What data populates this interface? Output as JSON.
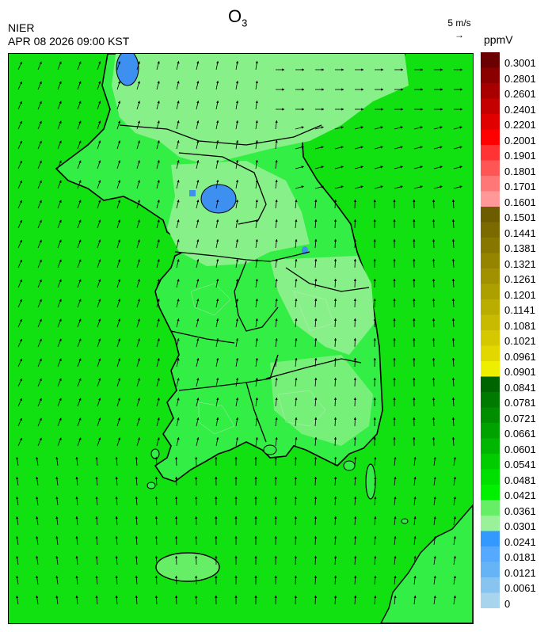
{
  "title": {
    "main": "O",
    "sub": "3"
  },
  "source": "NIER",
  "datetime": "APR 08 2026 09:00 KST",
  "wind_key": {
    "label": "5 m/s",
    "arrow": "→"
  },
  "unit": "ppmV",
  "colorbar": {
    "labels": [
      "0.3001",
      "0.2801",
      "0.2601",
      "0.2401",
      "0.2201",
      "0.2001",
      "0.1901",
      "0.1801",
      "0.1701",
      "0.1601",
      "0.1501",
      "0.1441",
      "0.1381",
      "0.1321",
      "0.1261",
      "0.1201",
      "0.1141",
      "0.1081",
      "0.1021",
      "0.0961",
      "0.0901",
      "0.0841",
      "0.0781",
      "0.0721",
      "0.0661",
      "0.0601",
      "0.0541",
      "0.0481",
      "0.0421",
      "0.0361",
      "0.0301",
      "0.0241",
      "0.0181",
      "0.0121",
      "0.0061",
      "0"
    ],
    "colors": [
      "#6b0000",
      "#8a0000",
      "#a80000",
      "#c40000",
      "#e00000",
      "#ff0000",
      "#ff3333",
      "#ff5555",
      "#ff7777",
      "#ff9999",
      "#6e5c00",
      "#7a6a00",
      "#877700",
      "#948400",
      "#a19100",
      "#ae9f00",
      "#bbac00",
      "#c8ba00",
      "#d5c800",
      "#e3d700",
      "#eeee00",
      "#006400",
      "#007a00",
      "#008e00",
      "#00a200",
      "#00b600",
      "#00cc00",
      "#00e000",
      "#00f000",
      "#66ee66",
      "#99f299",
      "#3399ff",
      "#55aaff",
      "#66b3f5",
      "#88c4f0",
      "#a8d4ee"
    ]
  },
  "map": {
    "fill_colors": {
      "sea_background": "#11e011",
      "land_mid": "#33ee44",
      "light_green": "#88f088",
      "blue_low": "#3d8ff0"
    }
  }
}
